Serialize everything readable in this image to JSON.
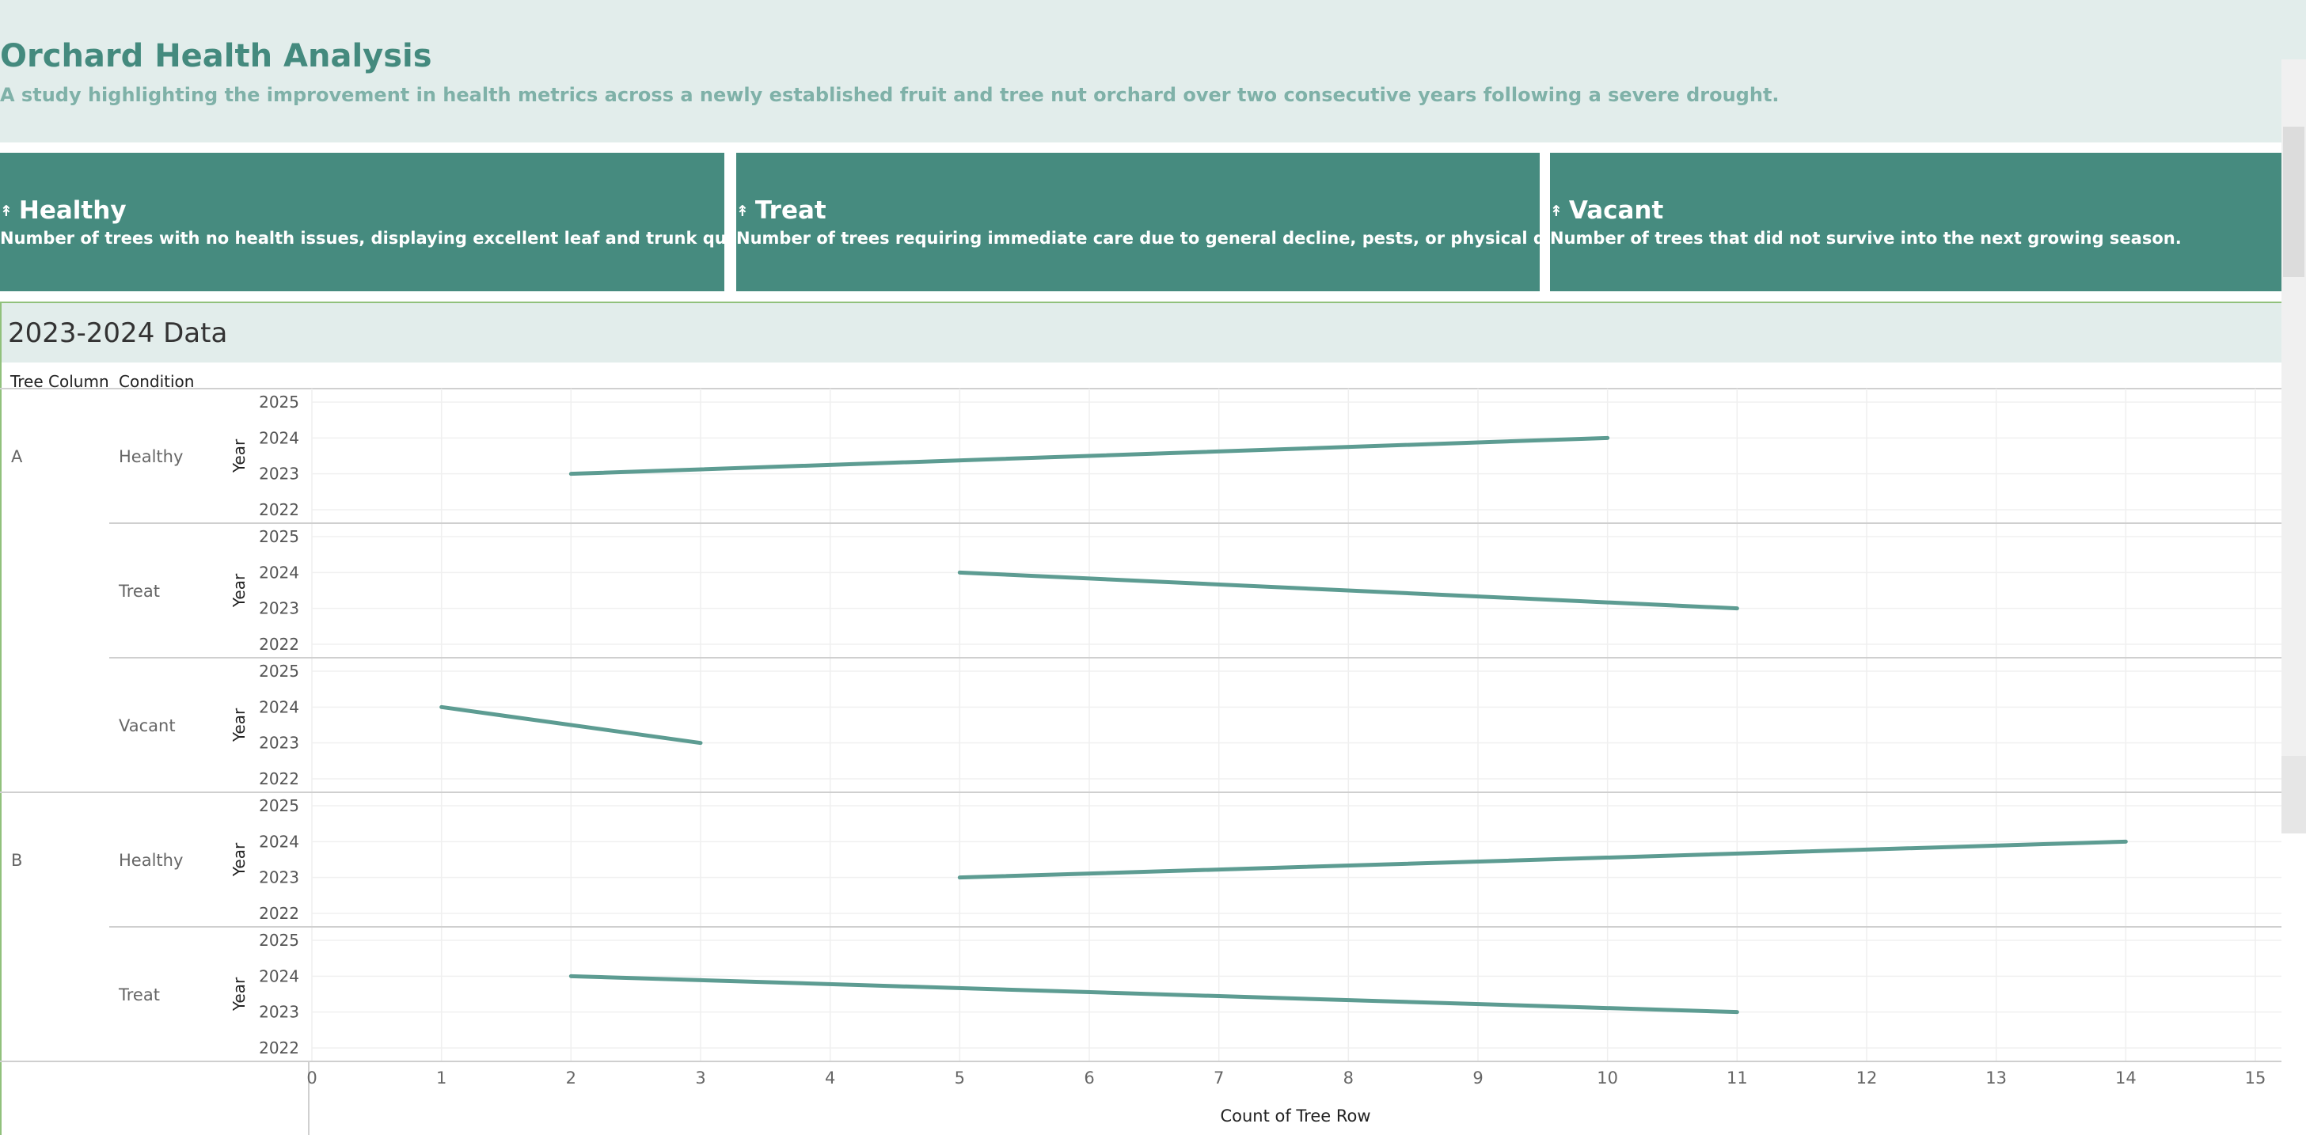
{
  "header": {
    "title": "Orchard Health Analysis",
    "subtitle": "A study highlighting the improvement in health metrics across a newly established fruit and tree nut orchard over two consecutive years following a severe drought."
  },
  "cards": [
    {
      "icon": "tree-icon",
      "title": "Healthy",
      "description": "Number of trees with no health issues, displaying excellent leaf and trunk quality."
    },
    {
      "icon": "tree-icon",
      "title": "Treat",
      "description": "Number of trees requiring immediate care due to general decline, pests, or physical damage."
    },
    {
      "icon": "tree-icon",
      "title": "Vacant",
      "description": "Number of trees that did not survive into the next growing season."
    }
  ],
  "section": {
    "title": "2023-2024 Data",
    "col_tree_column": "Tree Column",
    "col_condition": "Condition"
  },
  "colors": {
    "accent": "#448a7e",
    "card_bg": "#468b7f",
    "header_bg": "#e2edeb",
    "line": "#5d9c92"
  },
  "chart_data": {
    "type": "line",
    "xlabel": "Count of Tree Row",
    "ylabel": "Year",
    "xlim": [
      0,
      15
    ],
    "ylim": [
      2022,
      2025
    ],
    "x_ticks": [
      "0",
      "1",
      "2",
      "3",
      "4",
      "5",
      "6",
      "7",
      "8",
      "9",
      "10",
      "11",
      "12",
      "13",
      "14",
      "15"
    ],
    "y_ticks": [
      "2025",
      "2024",
      "2023",
      "2022"
    ],
    "grid": true,
    "panels": [
      {
        "tree_column": "A",
        "condition": "Healthy",
        "points": [
          {
            "x": 2,
            "year": 2023
          },
          {
            "x": 10,
            "year": 2024
          }
        ]
      },
      {
        "tree_column": "",
        "condition": "Treat",
        "points": [
          {
            "x": 11,
            "year": 2023
          },
          {
            "x": 5,
            "year": 2024
          }
        ]
      },
      {
        "tree_column": "",
        "condition": "Vacant",
        "points": [
          {
            "x": 3,
            "year": 2023
          },
          {
            "x": 1,
            "year": 2024
          }
        ]
      },
      {
        "tree_column": "B",
        "condition": "Healthy",
        "points": [
          {
            "x": 5,
            "year": 2023
          },
          {
            "x": 14,
            "year": 2024
          }
        ]
      },
      {
        "tree_column": "",
        "condition": "Treat",
        "points": [
          {
            "x": 11,
            "year": 2023
          },
          {
            "x": 2,
            "year": 2024
          }
        ]
      }
    ]
  }
}
